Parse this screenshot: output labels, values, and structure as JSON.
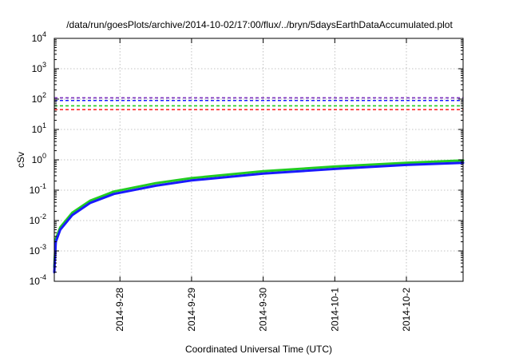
{
  "chart_data": {
    "type": "line",
    "title": "/data/run/goesPlots/archive/2014-10-02/17:00/flux/../bryn/5daysEarthDataAccumulated.plot",
    "xlabel": "Coordinated Universal Time (UTC)",
    "ylabel": "cSv",
    "yscale": "log",
    "ylim": [
      0.0001,
      10000
    ],
    "xlim": [
      "2014-09-27T02:00",
      "2014-10-02T19:00"
    ],
    "grid": true,
    "y_ticks": [
      {
        "base": "10",
        "exp": "-4"
      },
      {
        "base": "10",
        "exp": "-3"
      },
      {
        "base": "10",
        "exp": "-2"
      },
      {
        "base": "10",
        "exp": "-1"
      },
      {
        "base": "10",
        "exp": "0"
      },
      {
        "base": "10",
        "exp": "1"
      },
      {
        "base": "10",
        "exp": "2"
      },
      {
        "base": "10",
        "exp": "3"
      },
      {
        "base": "10",
        "exp": "4"
      }
    ],
    "x_ticks": [
      {
        "label": "2014-9-28",
        "at": "2014-09-28T00:00"
      },
      {
        "label": "2014-9-29",
        "at": "2014-09-29T00:00"
      },
      {
        "label": "2014-9-30",
        "at": "2014-09-30T00:00"
      },
      {
        "label": "2014-10-1",
        "at": "2014-10-01T00:00"
      },
      {
        "label": "2014-10-2",
        "at": "2014-10-02T00:00"
      }
    ],
    "reference_lines": [
      {
        "value": 110,
        "color": "#7b2fbf",
        "style": "dashed"
      },
      {
        "value": 90,
        "color": "#1a1aff",
        "style": "dashed"
      },
      {
        "value": 60,
        "color": "#22cc22",
        "style": "dashed"
      },
      {
        "value": 45,
        "color": "#ff2a2a",
        "style": "dashed"
      }
    ],
    "series": [
      {
        "color": "#22cc22",
        "points": [
          [
            "2014-09-27T02:00",
            0.0003
          ],
          [
            "2014-09-27T02:30",
            0.0025
          ],
          [
            "2014-09-27T04:00",
            0.006
          ],
          [
            "2014-09-27T08:00",
            0.018
          ],
          [
            "2014-09-27T14:00",
            0.045
          ],
          [
            "2014-09-27T22:00",
            0.09
          ],
          [
            "2014-09-28T12:00",
            0.17
          ],
          [
            "2014-09-29T00:00",
            0.25
          ],
          [
            "2014-09-30T00:00",
            0.42
          ],
          [
            "2014-10-01T00:00",
            0.6
          ],
          [
            "2014-10-02T00:00",
            0.8
          ],
          [
            "2014-10-02T19:00",
            0.95
          ]
        ]
      },
      {
        "color": "#1a1aff",
        "points": [
          [
            "2014-09-27T02:00",
            0.0002
          ],
          [
            "2014-09-27T02:30",
            0.002
          ],
          [
            "2014-09-27T04:00",
            0.005
          ],
          [
            "2014-09-27T08:00",
            0.015
          ],
          [
            "2014-09-27T14:00",
            0.038
          ],
          [
            "2014-09-27T22:00",
            0.075
          ],
          [
            "2014-09-28T12:00",
            0.14
          ],
          [
            "2014-09-29T00:00",
            0.21
          ],
          [
            "2014-09-30T00:00",
            0.35
          ],
          [
            "2014-10-01T00:00",
            0.5
          ],
          [
            "2014-10-02T00:00",
            0.68
          ],
          [
            "2014-10-02T19:00",
            0.8
          ]
        ]
      }
    ]
  }
}
